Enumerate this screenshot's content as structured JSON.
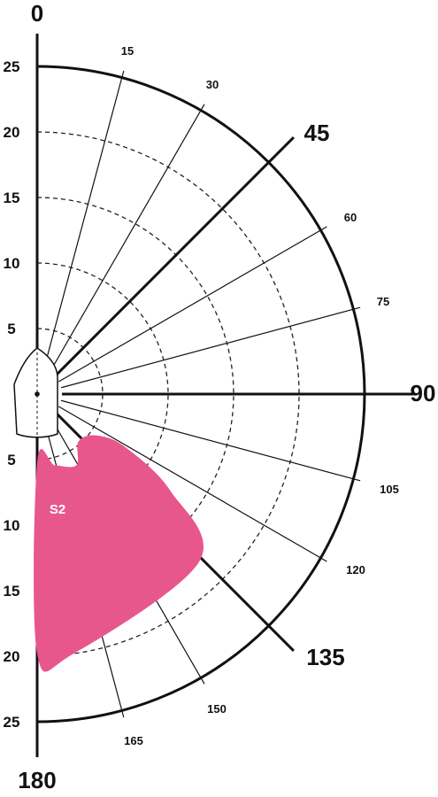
{
  "angle_labels": {
    "top": "0",
    "bottom": "180",
    "ninety": "90",
    "forty_five": "45",
    "one_thirty_five": "135",
    "fifteen": "15",
    "thirty": "30",
    "sixty": "60",
    "seventy_five": "75",
    "one_oh_five": "105",
    "one_twenty": "120",
    "one_fifty": "150",
    "one_sixty_five": "165"
  },
  "radial_labels_upper": [
    "5",
    "10",
    "15",
    "20",
    "25"
  ],
  "radial_labels_lower": [
    "5",
    "10",
    "15",
    "20",
    "25"
  ],
  "sail_zone": {
    "label": "S2",
    "color": "#e8578b"
  },
  "chart_data": {
    "type": "polar",
    "angle_ticks_deg": [
      0,
      15,
      30,
      45,
      60,
      75,
      90,
      105,
      120,
      135,
      150,
      165,
      180
    ],
    "major_angles_deg": [
      0,
      45,
      90,
      135,
      180
    ],
    "radial_rings": [
      5,
      10,
      15,
      20,
      25
    ],
    "r_max": 25,
    "series": [
      {
        "name": "S2",
        "color": "#e8578b",
        "outline_tws_twa": [
          [
            5.2,
            180
          ],
          [
            5.6,
            166
          ],
          [
            6.2,
            151
          ],
          [
            4.8,
            139
          ],
          [
            5.5,
            125
          ],
          [
            7.8,
            121
          ],
          [
            12.6,
            126
          ],
          [
            17.8,
            136
          ],
          [
            20,
            172
          ],
          [
            19.8,
            180
          ]
        ]
      }
    ]
  }
}
